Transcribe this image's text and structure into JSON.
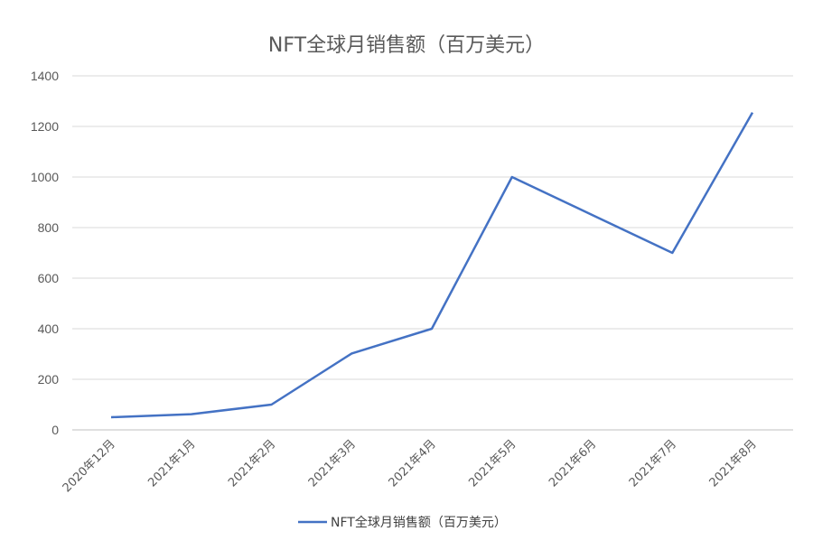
{
  "chart_data": {
    "type": "line",
    "title": "NFT全球月销售额（百万美元）",
    "categories": [
      "2020年12月",
      "2021年1月",
      "2021年2月",
      "2021年3月",
      "2021年4月",
      "2021年5月",
      "2021年6月",
      "2021年7月",
      "2021年8月"
    ],
    "series": [
      {
        "name": "NFT全球月销售额（百万美元）",
        "values": [
          50,
          62,
          100,
          302,
          400,
          1000,
          850,
          700,
          1255
        ],
        "color": "#4472c4"
      }
    ],
    "yticks": [
      0,
      200,
      400,
      600,
      800,
      1000,
      1200,
      1400
    ],
    "ylim": [
      0,
      1400
    ],
    "grid": true,
    "legend_position": "bottom"
  }
}
